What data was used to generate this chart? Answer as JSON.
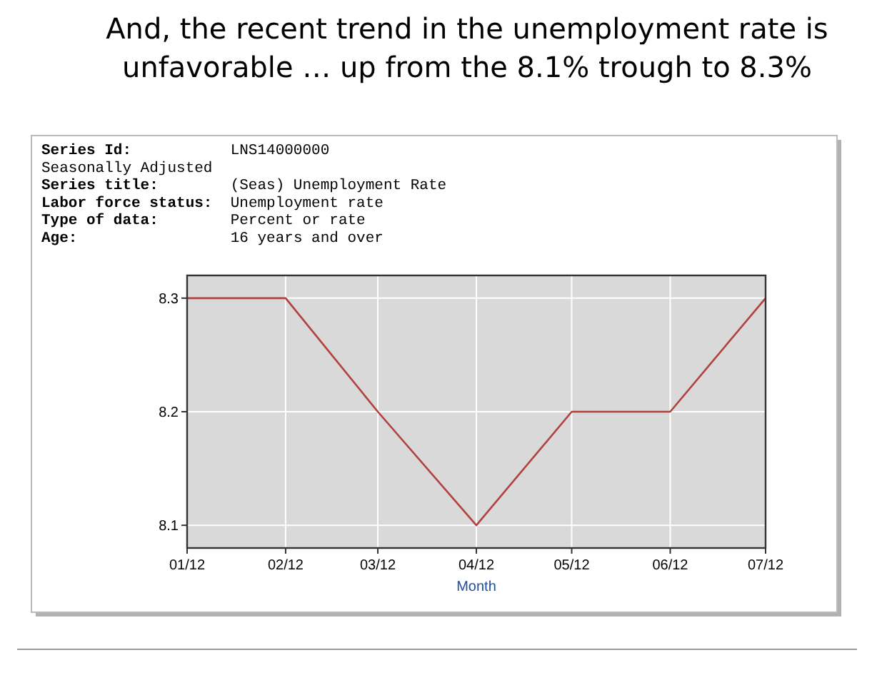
{
  "chart_data": {
    "type": "line",
    "title": "And, the recent trend in the unemployment rate is unfavorable … up from the 8.1% trough to 8.3%",
    "annotations": [
      "Series Id:           LNS14000000",
      "Seasonally Adjusted",
      "Series title:        (Seas) Unemployment Rate",
      "Labor force status:  Unemployment rate",
      "Type of data:        Percent or rate",
      "Age:                 16 years and over"
    ],
    "xlabel": "Month",
    "x": [
      "2012-01",
      "2012-02",
      "2012-03",
      "2012-04",
      "2012-05",
      "2012-06",
      "2012-07"
    ],
    "series": [
      {
        "color": "#b0413e",
        "values": [
          8.3,
          8.3,
          8.2,
          8.1,
          8.2,
          8.2,
          8.3
        ]
      }
    ],
    "xlim": [
      "2012-01",
      "2012-07"
    ],
    "xticks": [
      {
        "value": "2012-01",
        "label": "01/12"
      },
      {
        "value": "2012-02",
        "label": "02/12"
      },
      {
        "value": "2012-03",
        "label": "03/12"
      },
      {
        "value": "2012-04",
        "label": "04/12"
      },
      {
        "value": "2012-05",
        "label": "05/12"
      },
      {
        "value": "2012-06",
        "label": "06/12"
      },
      {
        "value": "2012-07",
        "label": "07/12"
      }
    ],
    "ylim": [
      8.08,
      8.32
    ],
    "yticks": [
      8.1,
      8.2,
      8.3
    ],
    "grid": true,
    "marker": "none",
    "line_style": "solid"
  }
}
